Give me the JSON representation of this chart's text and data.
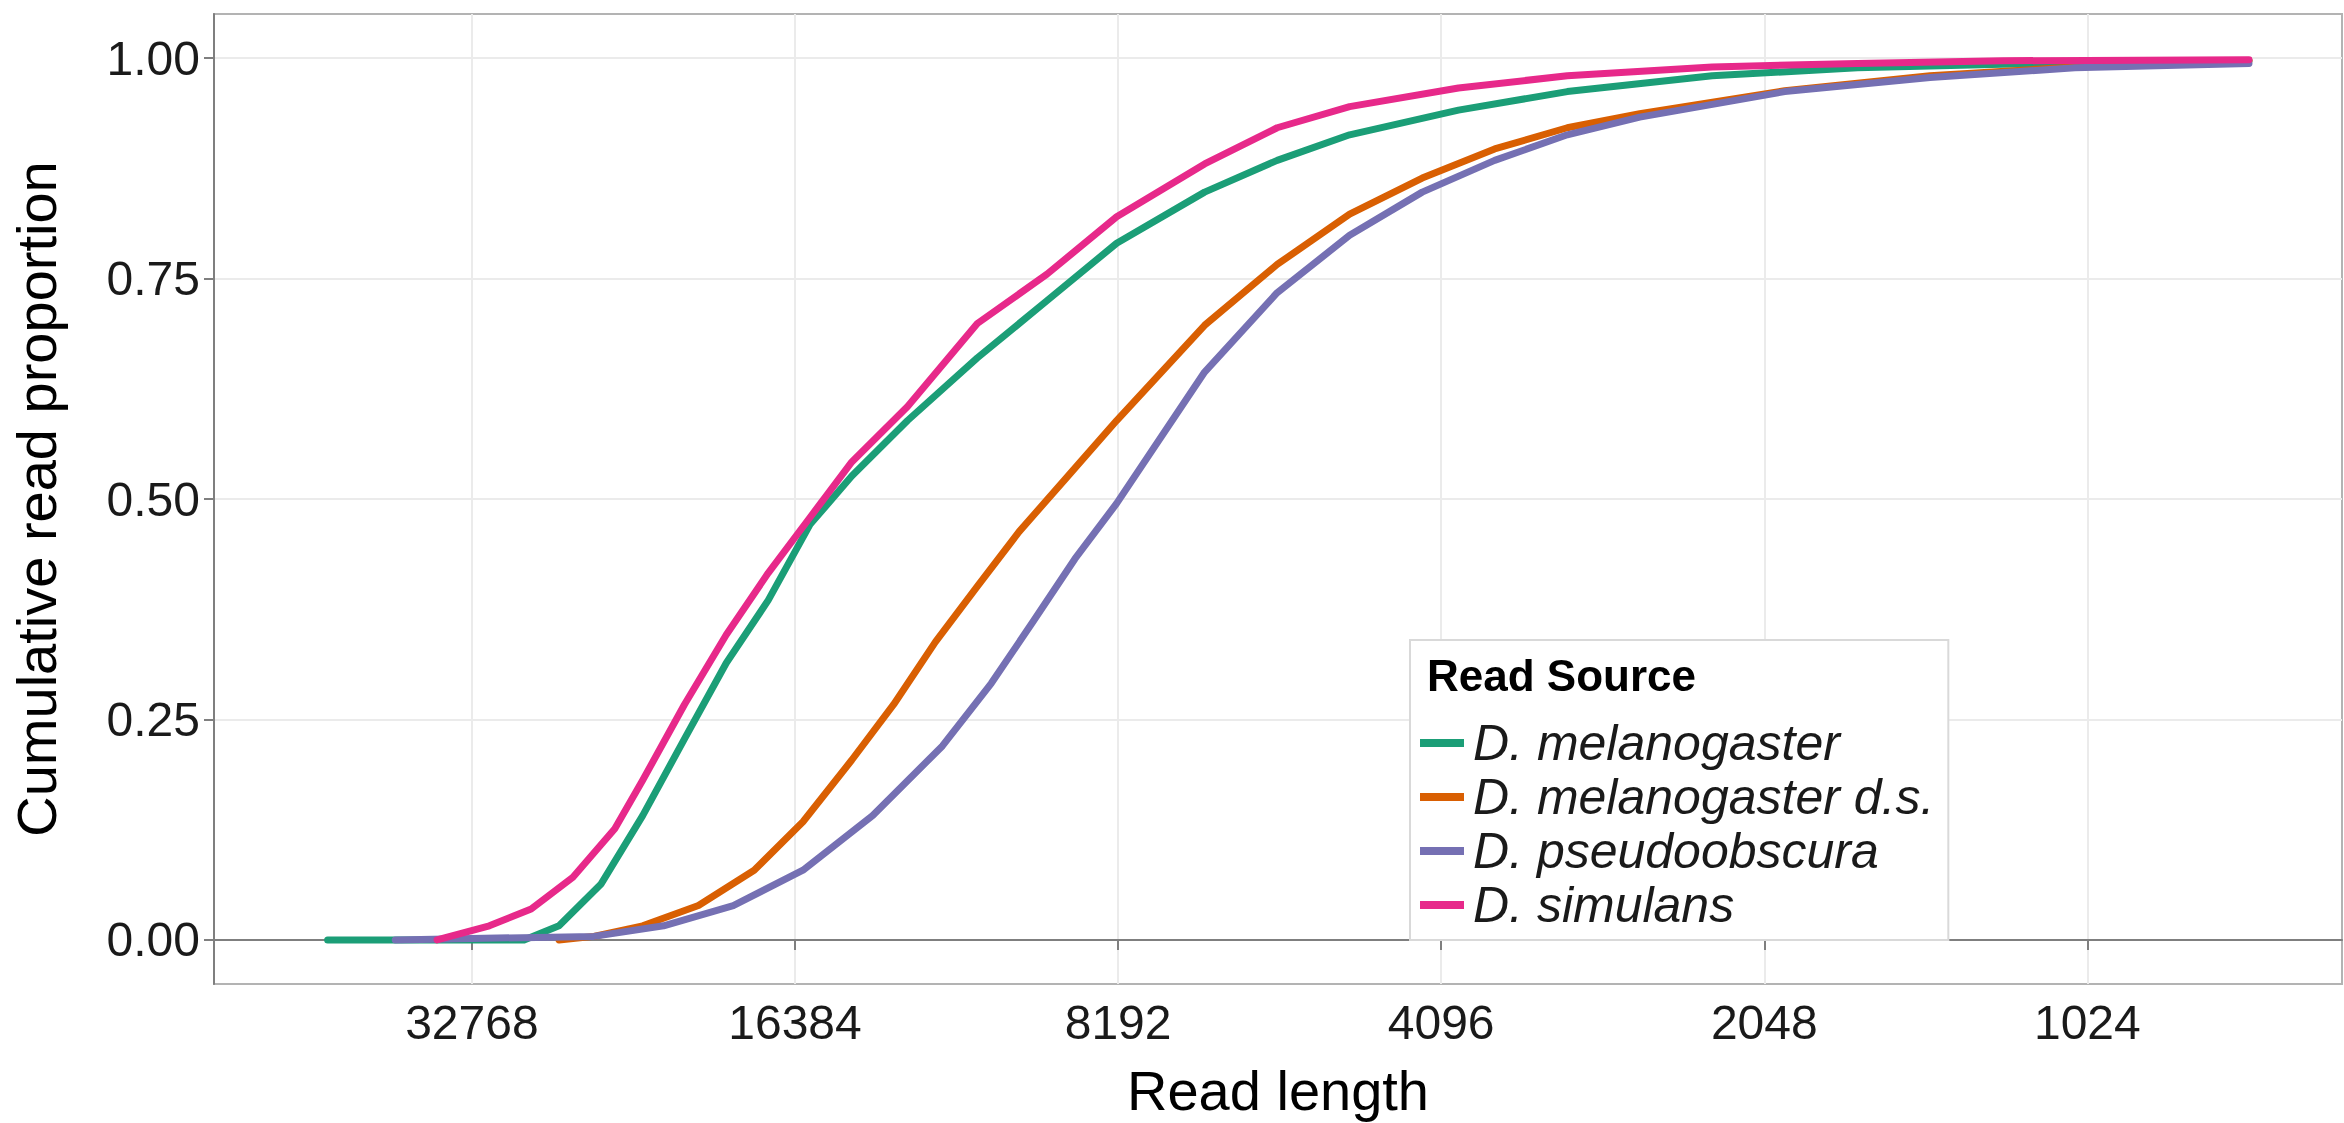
{
  "chart_data": {
    "type": "line",
    "xlabel": "Read length",
    "ylabel": "Cumulative read proportion",
    "legend_title": "Read Source",
    "log": "x",
    "xlim": [
      56980,
      593
    ],
    "xticks": [
      32768,
      16384,
      8192,
      4096,
      2048,
      1024
    ],
    "ylim": [
      -0.05,
      1.05
    ],
    "yticks": [
      {
        "value": 0,
        "label": "0.00"
      },
      {
        "value": 0.25,
        "label": "0.25"
      },
      {
        "value": 0.5,
        "label": "0.50"
      },
      {
        "value": 0.75,
        "label": "0.75"
      },
      {
        "value": 1,
        "label": "1.00"
      }
    ],
    "grid": true,
    "legend": "bottom right",
    "marker": "none",
    "line_style": "solid",
    "series": [
      {
        "name": "D. melanogaster",
        "color": "#1b9e77",
        "x": [
          44653,
          29294,
          27182,
          24849,
          22716,
          20767,
          18986,
          17355,
          15866,
          14504,
          12868,
          11080,
          9541,
          8217,
          6804,
          5823,
          4985,
          3947,
          3125,
          2290,
          1677,
          1229,
          724
        ],
        "values": [
          0,
          0,
          0.016,
          0.063,
          0.141,
          0.228,
          0.314,
          0.385,
          0.471,
          0.526,
          0.589,
          0.66,
          0.725,
          0.79,
          0.848,
          0.884,
          0.913,
          0.941,
          0.962,
          0.98,
          0.989,
          0.993,
          0.997
        ]
      },
      {
        "name": "D. melanogaster d.s.",
        "color": "#d95f02",
        "x": [
          27182,
          25222,
          22716,
          20154,
          17883,
          16105,
          14504,
          13258,
          12121,
          11080,
          10129,
          9123,
          8217,
          6804,
          5823,
          4985,
          4266,
          3652,
          3125,
          2675,
          1960,
          1435,
          1052,
          724
        ],
        "values": [
          0,
          0.004,
          0.016,
          0.039,
          0.079,
          0.134,
          0.204,
          0.267,
          0.338,
          0.401,
          0.463,
          0.526,
          0.589,
          0.697,
          0.766,
          0.823,
          0.864,
          0.897,
          0.921,
          0.937,
          0.963,
          0.98,
          0.99,
          0.997
        ]
      },
      {
        "name": "D. pseudoobscura",
        "color": "#7570b3",
        "x": [
          38624,
          25222,
          21719,
          18703,
          16105,
          13867,
          11941,
          10753,
          9830,
          8988,
          8217,
          6804,
          5823,
          4985,
          4266,
          3652,
          3125,
          2675,
          1960,
          1435,
          1052,
          724
        ],
        "values": [
          0,
          0.004,
          0.016,
          0.039,
          0.079,
          0.141,
          0.22,
          0.291,
          0.361,
          0.432,
          0.495,
          0.644,
          0.734,
          0.799,
          0.848,
          0.884,
          0.913,
          0.933,
          0.962,
          0.978,
          0.989,
          0.994
        ]
      },
      {
        "name": "D. simulans",
        "color": "#e7298a",
        "x": [
          35311,
          31565,
          28855,
          26383,
          24116,
          22716,
          20767,
          18986,
          17355,
          15866,
          14504,
          12868,
          11080,
          9541,
          8217,
          6804,
          5823,
          4985,
          3947,
          3125,
          2290,
          1677,
          1229,
          724
        ],
        "values": [
          0,
          0.016,
          0.035,
          0.071,
          0.126,
          0.181,
          0.267,
          0.346,
          0.416,
          0.479,
          0.542,
          0.605,
          0.699,
          0.755,
          0.82,
          0.88,
          0.921,
          0.945,
          0.966,
          0.98,
          0.99,
          0.994,
          0.997,
          0.998
        ]
      }
    ]
  }
}
